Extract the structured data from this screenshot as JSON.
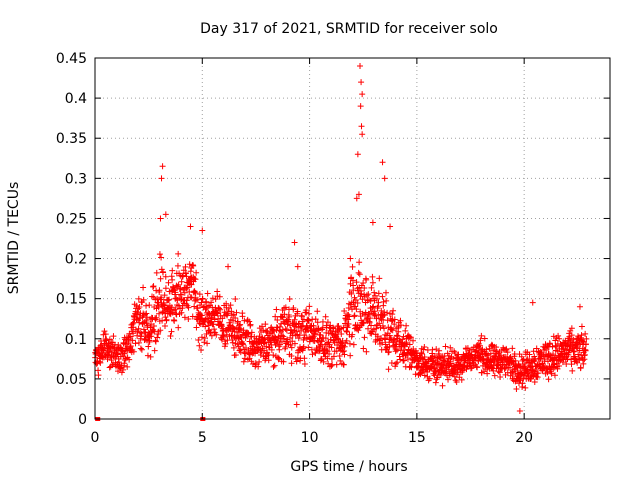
{
  "chart_data": {
    "type": "scatter",
    "title": "Day 317 of 2021, SRMTID for receiver solo",
    "xlabel": "GPS time / hours",
    "ylabel": "SRMTID / TECUs",
    "xlim": [
      0,
      24
    ],
    "ylim": [
      0,
      0.45
    ],
    "xticks": [
      0,
      5,
      10,
      15,
      20
    ],
    "yticks": [
      0,
      0.05,
      0.1,
      0.15,
      0.2,
      0.25,
      0.3,
      0.35,
      0.4,
      0.45
    ],
    "xtick_labels": [
      "0",
      "5",
      "10",
      "15",
      "20"
    ],
    "ytick_labels": [
      "0",
      "0.05",
      "0.1",
      "0.15",
      "0.2",
      "0.25",
      "0.3",
      "0.35",
      "0.4",
      "0.45"
    ],
    "marker": "+",
    "color": "#ff0000",
    "grid": true,
    "series_name": "SRMTID",
    "points_per_hour": 90,
    "profile": {
      "hours": [
        0,
        0.5,
        1,
        1.5,
        2,
        2.5,
        3,
        3.5,
        4,
        4.5,
        5,
        5.5,
        6,
        6.5,
        7,
        7.5,
        8,
        8.5,
        9,
        9.5,
        10,
        10.5,
        11,
        11.5,
        12,
        12.5,
        13,
        13.5,
        14,
        14.5,
        15,
        15.5,
        16,
        16.5,
        17,
        17.5,
        18,
        18.5,
        19,
        19.5,
        20,
        20.5,
        21,
        21.5,
        22,
        22.5,
        22.9
      ],
      "median": [
        0.075,
        0.09,
        0.08,
        0.085,
        0.13,
        0.11,
        0.15,
        0.14,
        0.16,
        0.17,
        0.12,
        0.13,
        0.12,
        0.11,
        0.1,
        0.085,
        0.095,
        0.1,
        0.12,
        0.1,
        0.11,
        0.1,
        0.095,
        0.09,
        0.15,
        0.13,
        0.14,
        0.11,
        0.1,
        0.09,
        0.075,
        0.065,
        0.07,
        0.065,
        0.07,
        0.075,
        0.08,
        0.07,
        0.075,
        0.065,
        0.06,
        0.07,
        0.075,
        0.08,
        0.085,
        0.085,
        0.085
      ],
      "spread": [
        0.03,
        0.035,
        0.03,
        0.035,
        0.05,
        0.05,
        0.07,
        0.06,
        0.06,
        0.06,
        0.05,
        0.045,
        0.045,
        0.045,
        0.045,
        0.04,
        0.04,
        0.045,
        0.06,
        0.05,
        0.045,
        0.045,
        0.04,
        0.04,
        0.08,
        0.08,
        0.07,
        0.06,
        0.05,
        0.04,
        0.03,
        0.03,
        0.03,
        0.03,
        0.03,
        0.03,
        0.03,
        0.03,
        0.03,
        0.03,
        0.03,
        0.035,
        0.035,
        0.035,
        0.035,
        0.035,
        0.035
      ]
    },
    "peaks": [
      {
        "x": 3.15,
        "y": 0.315
      },
      {
        "x": 3.1,
        "y": 0.3
      },
      {
        "x": 3.05,
        "y": 0.25
      },
      {
        "x": 3.3,
        "y": 0.255
      },
      {
        "x": 4.45,
        "y": 0.24
      },
      {
        "x": 5.0,
        "y": 0.235
      },
      {
        "x": 9.3,
        "y": 0.22
      },
      {
        "x": 12.35,
        "y": 0.44
      },
      {
        "x": 12.4,
        "y": 0.42
      },
      {
        "x": 12.45,
        "y": 0.405
      },
      {
        "x": 12.38,
        "y": 0.39
      },
      {
        "x": 12.42,
        "y": 0.365
      },
      {
        "x": 12.45,
        "y": 0.355
      },
      {
        "x": 12.25,
        "y": 0.33
      },
      {
        "x": 12.2,
        "y": 0.275
      },
      {
        "x": 12.3,
        "y": 0.28
      },
      {
        "x": 13.4,
        "y": 0.32
      },
      {
        "x": 13.5,
        "y": 0.3
      },
      {
        "x": 13.75,
        "y": 0.24
      },
      {
        "x": 12.95,
        "y": 0.245
      },
      {
        "x": 11.9,
        "y": 0.2
      },
      {
        "x": 9.45,
        "y": 0.19
      },
      {
        "x": 6.2,
        "y": 0.19
      },
      {
        "x": 20.4,
        "y": 0.145
      },
      {
        "x": 22.6,
        "y": 0.14
      },
      {
        "x": 19.8,
        "y": 0.01
      },
      {
        "x": 9.4,
        "y": 0.018
      }
    ],
    "zero_points": [
      {
        "x": 0.1,
        "y": 0
      },
      {
        "x": 0.15,
        "y": 0
      },
      {
        "x": 5.0,
        "y": 0
      },
      {
        "x": 5.05,
        "y": 0
      }
    ]
  }
}
